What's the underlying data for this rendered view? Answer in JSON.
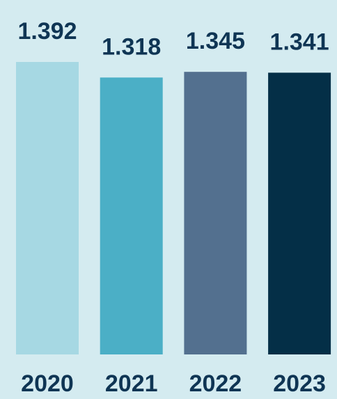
{
  "chart_data": {
    "type": "bar",
    "categories": [
      "2020",
      "2021",
      "2022",
      "2023"
    ],
    "values": [
      1.392,
      1.318,
      1.345,
      1.341
    ],
    "colors": [
      "#a6d8e3",
      "#4bafc6",
      "#53708f",
      "#042f47"
    ]
  }
}
